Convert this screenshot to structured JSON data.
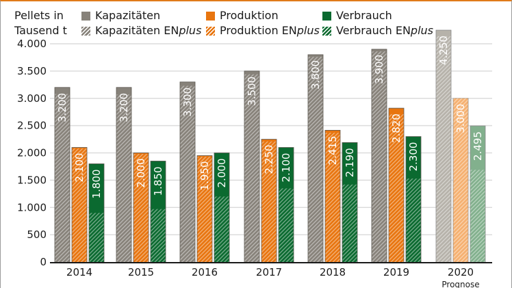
{
  "chart_data": {
    "type": "bar",
    "ylabel": "Pellets in Tausend t",
    "ylabel_lines": [
      "Pellets in",
      "Tausend t"
    ],
    "ylim": [
      0,
      4250
    ],
    "yticks": [
      0,
      500,
      1000,
      1500,
      2000,
      2500,
      3000,
      3500,
      4000
    ],
    "ytick_labels": [
      "0",
      "500",
      "1.000",
      "1.500",
      "2.000",
      "2.500",
      "3.000",
      "3.500",
      "4.000"
    ],
    "categories": [
      "2014",
      "2015",
      "2016",
      "2017",
      "2018",
      "2019",
      "2020"
    ],
    "category_note": {
      "2020": "Prognose"
    },
    "grid": true,
    "legend": "top",
    "series": [
      {
        "name": "Kapazitäten",
        "color": "#87827a",
        "values": [
          3200,
          3200,
          3300,
          3500,
          3800,
          3900,
          4250
        ]
      },
      {
        "name": "Produktion",
        "color": "#e8750f",
        "values": [
          2100,
          2000,
          1950,
          2250,
          2415,
          2820,
          3000
        ]
      },
      {
        "name": "Verbrauch",
        "color": "#0b6a30",
        "values": [
          1800,
          1850,
          2000,
          2100,
          2190,
          2300,
          2495
        ]
      }
    ],
    "enplus_series": [
      {
        "name": "Kapazitäten ENplus",
        "values": [
          3080,
          3070,
          3230,
          3440,
          3760,
          3860,
          4140
        ]
      },
      {
        "name": "Produktion ENplus",
        "values": [
          2080,
          1980,
          1930,
          2210,
          2370,
          2710,
          3000
        ]
      },
      {
        "name": "Verbrauch ENplus",
        "values": [
          900,
          970,
          1200,
          1350,
          1420,
          1530,
          1690
        ]
      }
    ],
    "forecast_colors": {
      "Kapazitäten": "#b6b2aa",
      "Produktion": "#f5b070",
      "Verbrauch": "#82b08d"
    }
  }
}
